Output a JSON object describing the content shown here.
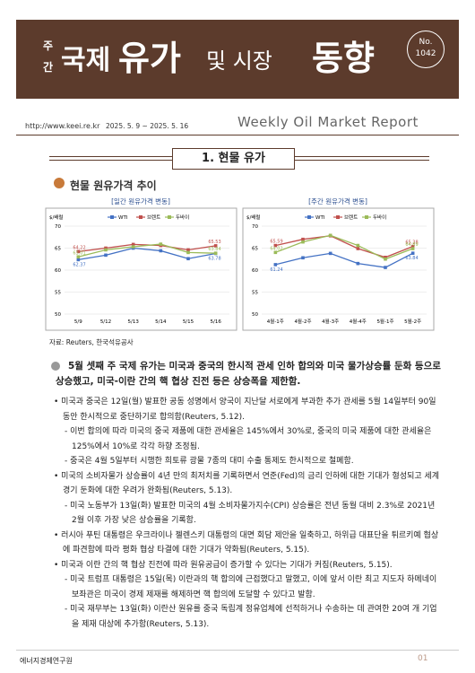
{
  "header": {
    "prefix_top": "주",
    "prefix_bottom": "간",
    "title_a": "국제",
    "title_b": "유가",
    "title_c": "및 시장",
    "title_d": "동향",
    "issue_label": "No.",
    "issue_number": "1042",
    "url": "http://www.keei.re.kr",
    "period": "2025. 5. 9 ~ 2025. 5. 16",
    "english_title": "Weekly Oil Market Report"
  },
  "section": "1. 현물 유가",
  "subsection": "현물 원유가격 추이",
  "chart_data": [
    {
      "type": "line",
      "title": "[일간 원유가격 변동]",
      "y_label": "$/배럴",
      "legend": "top",
      "grid": true,
      "categories": [
        "5/9",
        "5/12",
        "5/13",
        "5/14",
        "5/15",
        "5/16"
      ],
      "ylim": [
        50,
        70
      ],
      "yticks": [
        50,
        55,
        60,
        65,
        70
      ],
      "series": [
        {
          "name": "WTI",
          "color": "#4472c4",
          "values": [
            62.37,
            63.4,
            65.0,
            64.4,
            62.6,
            63.78
          ]
        },
        {
          "name": "브렌트",
          "color": "#c0504d",
          "values": [
            64.22,
            65.0,
            65.84,
            65.6,
            64.6,
            65.53
          ]
        },
        {
          "name": "두바이",
          "color": "#9bbb59",
          "values": [
            63.01,
            64.6,
            65.3,
            65.9,
            64.0,
            63.84
          ]
        }
      ]
    },
    {
      "type": "line",
      "title": "[주간 원유가격 변동]",
      "y_label": "$/배럴",
      "legend": "top",
      "grid": true,
      "categories": [
        "4월-1주",
        "4월-2주",
        "4월-3주",
        "4월-4주",
        "5월-1주",
        "5월-2주"
      ],
      "ylim": [
        50,
        70
      ],
      "yticks": [
        50,
        55,
        60,
        65,
        70
      ],
      "series": [
        {
          "name": "WTI",
          "color": "#4472c4",
          "values": [
            61.24,
            62.8,
            63.8,
            61.5,
            60.6,
            63.84
          ]
        },
        {
          "name": "브렌트",
          "color": "#c0504d",
          "values": [
            65.59,
            67.0,
            67.8,
            64.9,
            62.9,
            65.38
          ]
        },
        {
          "name": "두바이",
          "color": "#9bbb59",
          "values": [
            64.02,
            66.4,
            67.9,
            65.6,
            62.5,
            64.89
          ]
        }
      ]
    }
  ],
  "source": "자료: Reuters, 한국석유공사",
  "summary": "5월 셋째 주 국제 유가는 미국과 중국의 한시적 관세 인하 합의와 미국 물가상승률 둔화 등으로 상승했고, 미국-이란 간의 핵 협상 진전 등은 상승폭을 제한함.",
  "bullets": [
    {
      "text": "미국과 중국은 12일(월) 발표한 공동 성명에서 양국이 지난달 서로에게 부과한 추가 관세를 5월 14일부터 90일 동안 한시적으로 중단하기로 합의함(Reuters, 5.12).",
      "subs": [
        "이번 합의에 따라 미국의 중국 제품에 대한 관세율은 145%에서 30%로, 중국의 미국 제품에 대한 관세율은 125%에서 10%로 각각 하향 조정됨.",
        "중국은 4월 5일부터 시행한 희토류 광물 7종의 대미 수출 통제도 한시적으로 철폐함."
      ]
    },
    {
      "text": "미국의 소비자물가 상승률이 4년 만의 최저치를 기록하면서 연준(Fed)의 금리 인하에 대한 기대가 형성되고 세계 경기 둔화에 대한 우려가 완화됨(Reuters, 5.13).",
      "subs": [
        "미국 노동부가 13일(화) 발표한 미국의 4월 소비자물가지수(CPI) 상승률은 전년 동월 대비 2.3%로 2021년 2월 이후 가장 낮은 상승률을 기록함."
      ]
    },
    {
      "text": "러시아 푸틴 대통령은 우크라이나 젤렌스키 대통령의 대면 회담 제안을 일축하고, 하위급 대표단을 튀르키예 협상에 파견함에 따라 평화 협상 타결에 대한 기대가 약화됨(Reuters, 5.15).",
      "subs": []
    },
    {
      "text": "미국과 이란 간의 핵 협상 진전에 따라 원유공급이 증가할 수 있다는 기대가 커짐(Reuters, 5.15).",
      "subs": [
        "미국 트럼프 대통령은 15일(목) 이란과의 핵 합의에 근접했다고 말했고, 이에 앞서 이란 최고 지도자 하메네이 보좌관은 미국이 경제 제재를 해제하면 핵 합의에 도달할 수 있다고 발함.",
        "미국 재무부는 13일(화) 이란산 원유를 중국 독립계 정유업체에 선적하거나 수송하는 데 관여한 20여 개 기업을 제재 대상에 추가함(Reuters, 5.13)."
      ]
    }
  ],
  "footer": {
    "org": "에너지경제연구원",
    "page": "01"
  }
}
